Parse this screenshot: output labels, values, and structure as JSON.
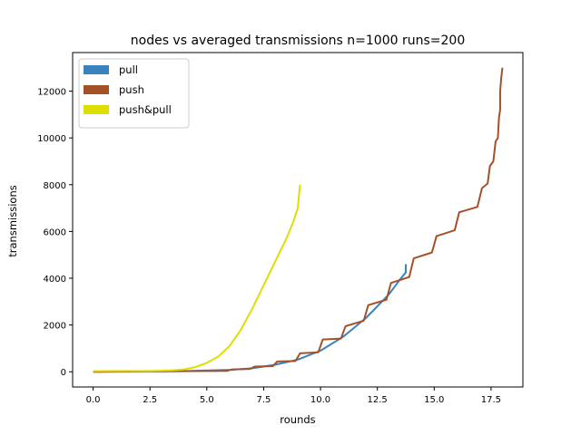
{
  "chart_data": {
    "type": "line",
    "title": "nodes vs averaged transmissions n=1000 runs=200",
    "xlabel": "rounds",
    "ylabel": "transmissions",
    "xlim": [
      -0.9,
      18.9
    ],
    "ylim": [
      -650,
      13650
    ],
    "xticks": [
      0,
      2.5,
      5,
      7.5,
      10,
      12.5,
      15,
      17.5
    ],
    "xtick_labels": [
      "0.0",
      "2.5",
      "5.0",
      "7.5",
      "10.0",
      "12.5",
      "15.0",
      "17.5"
    ],
    "yticks": [
      0,
      2000,
      4000,
      6000,
      8000,
      10000,
      12000
    ],
    "ytick_labels": [
      "0",
      "2000",
      "4000",
      "6000",
      "8000",
      "10000",
      "12000"
    ],
    "grid": false,
    "legend_position": "top-left",
    "series": [
      {
        "name": "pull",
        "color": "#3a82be",
        "points": [
          [
            0,
            0
          ],
          [
            2,
            10
          ],
          [
            4,
            30
          ],
          [
            6,
            80
          ],
          [
            7,
            150
          ],
          [
            8,
            300
          ],
          [
            9,
            520
          ],
          [
            10,
            900
          ],
          [
            11,
            1500
          ],
          [
            12,
            2300
          ],
          [
            13,
            3300
          ],
          [
            13.5,
            3950
          ],
          [
            13.75,
            4250
          ],
          [
            13.75,
            4600
          ]
        ]
      },
      {
        "name": "push",
        "color": "#a55128",
        "points": [
          [
            0,
            0
          ],
          [
            5.9,
            40
          ],
          [
            6.1,
            100
          ],
          [
            6.9,
            120
          ],
          [
            7.1,
            220
          ],
          [
            7.9,
            240
          ],
          [
            8.1,
            440
          ],
          [
            8.9,
            460
          ],
          [
            9.1,
            790
          ],
          [
            9.9,
            830
          ],
          [
            10.1,
            1380
          ],
          [
            10.9,
            1420
          ],
          [
            11.1,
            1950
          ],
          [
            11.9,
            2180
          ],
          [
            12.1,
            2850
          ],
          [
            12.9,
            3080
          ],
          [
            13.1,
            3800
          ],
          [
            13.9,
            4050
          ],
          [
            14.1,
            4850
          ],
          [
            14.9,
            5100
          ],
          [
            15.1,
            5800
          ],
          [
            15.9,
            6050
          ],
          [
            16.1,
            6820
          ],
          [
            16.9,
            7050
          ],
          [
            17.1,
            7850
          ],
          [
            17.35,
            8050
          ],
          [
            17.45,
            8800
          ],
          [
            17.6,
            9000
          ],
          [
            17.7,
            9850
          ],
          [
            17.8,
            10000
          ],
          [
            17.85,
            10900
          ],
          [
            17.9,
            11200
          ],
          [
            17.9,
            12000
          ],
          [
            17.95,
            12600
          ],
          [
            18,
            13000
          ]
        ]
      },
      {
        "name": "push&pull",
        "color": "#dede00",
        "points": [
          [
            0,
            30
          ],
          [
            2.5,
            35
          ],
          [
            3.5,
            60
          ],
          [
            4,
            100
          ],
          [
            4.5,
            200
          ],
          [
            5,
            380
          ],
          [
            5.5,
            650
          ],
          [
            6,
            1100
          ],
          [
            6.5,
            1800
          ],
          [
            7,
            2700
          ],
          [
            7.5,
            3700
          ],
          [
            8,
            4700
          ],
          [
            8.5,
            5700
          ],
          [
            8.8,
            6400
          ],
          [
            9,
            7000
          ],
          [
            9.05,
            7500
          ],
          [
            9.1,
            8000
          ]
        ]
      }
    ]
  }
}
